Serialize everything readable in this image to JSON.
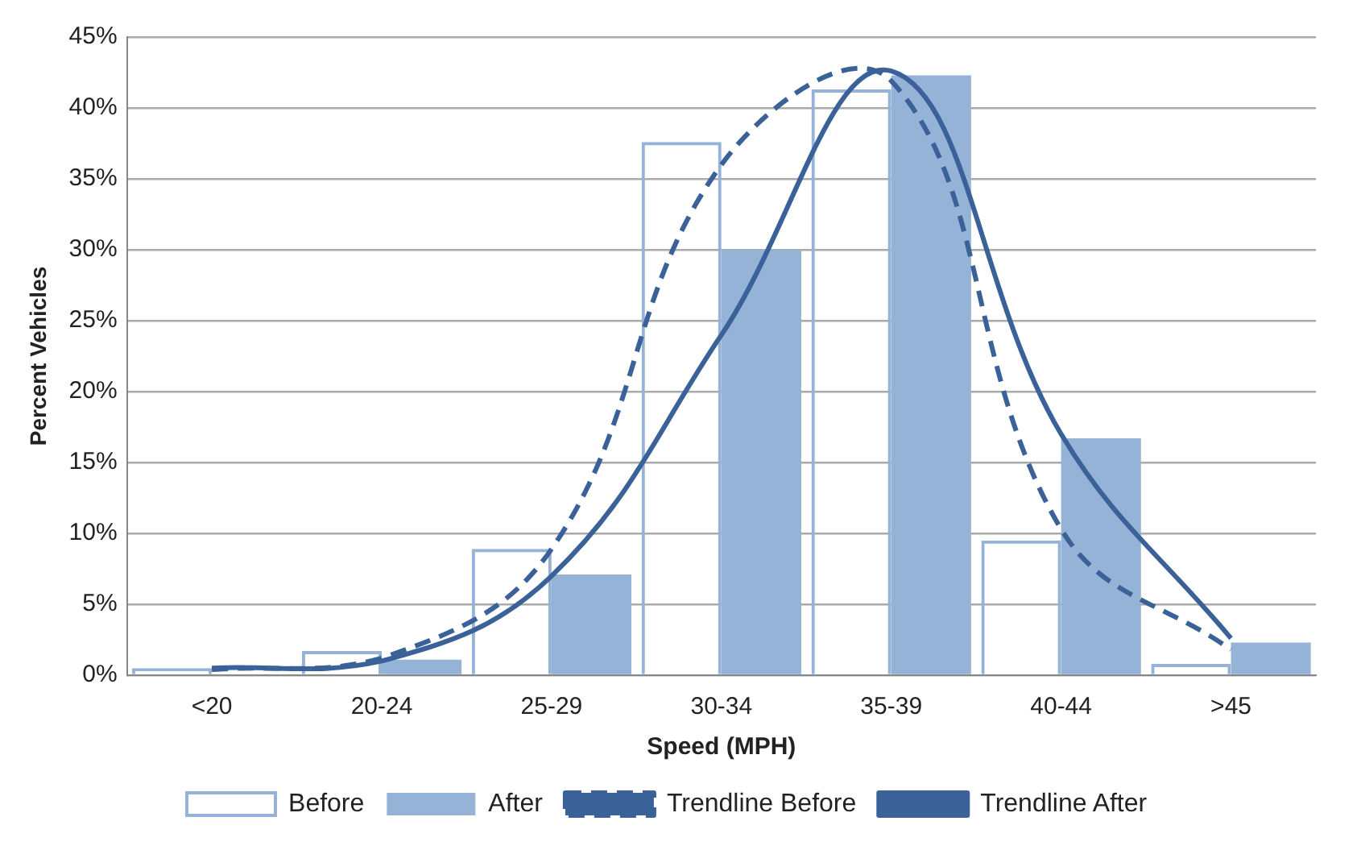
{
  "chart_data": {
    "type": "bar",
    "xlabel": "Speed (MPH)",
    "ylabel": "Percent Vehicles",
    "categories": [
      "<20",
      "20-24",
      "25-29",
      "30-34",
      "35-39",
      "40-44",
      ">45"
    ],
    "series": [
      {
        "name": "Before",
        "color": "#95b3d7",
        "values": [
          0.5,
          1.7,
          8.9,
          37.6,
          41.3,
          9.5,
          0.8
        ]
      },
      {
        "name": "After",
        "color": "#95b3d7",
        "values": [
          0,
          1.1,
          7.1,
          30.0,
          42.3,
          16.7,
          2.3
        ]
      },
      {
        "name": "Trendline Before",
        "type": "line",
        "color": "#3a6299",
        "line_style": "dashed",
        "values": [
          0.4,
          1.2,
          8.9,
          36,
          41.9,
          10.3,
          1.8
        ]
      },
      {
        "name": "Trendline After",
        "type": "line",
        "color": "#3a6299",
        "line_style": "solid",
        "values": [
          0.5,
          1.0,
          7,
          24,
          42.6,
          17,
          2.6
        ]
      }
    ],
    "ylim": [
      0,
      45
    ],
    "yticks": [
      {
        "value": 0,
        "label": "0%"
      },
      {
        "value": 5,
        "label": "5%"
      },
      {
        "value": 10,
        "label": "10%"
      },
      {
        "value": 15,
        "label": "15%"
      },
      {
        "value": 20,
        "label": "20%"
      },
      {
        "value": 25,
        "label": "25%"
      },
      {
        "value": 30,
        "label": "30%"
      },
      {
        "value": 35,
        "label": "35%"
      },
      {
        "value": 40,
        "label": "40%"
      },
      {
        "value": 45,
        "label": "45%"
      }
    ],
    "grid": "y",
    "legend": "bottom",
    "marker": "none"
  }
}
